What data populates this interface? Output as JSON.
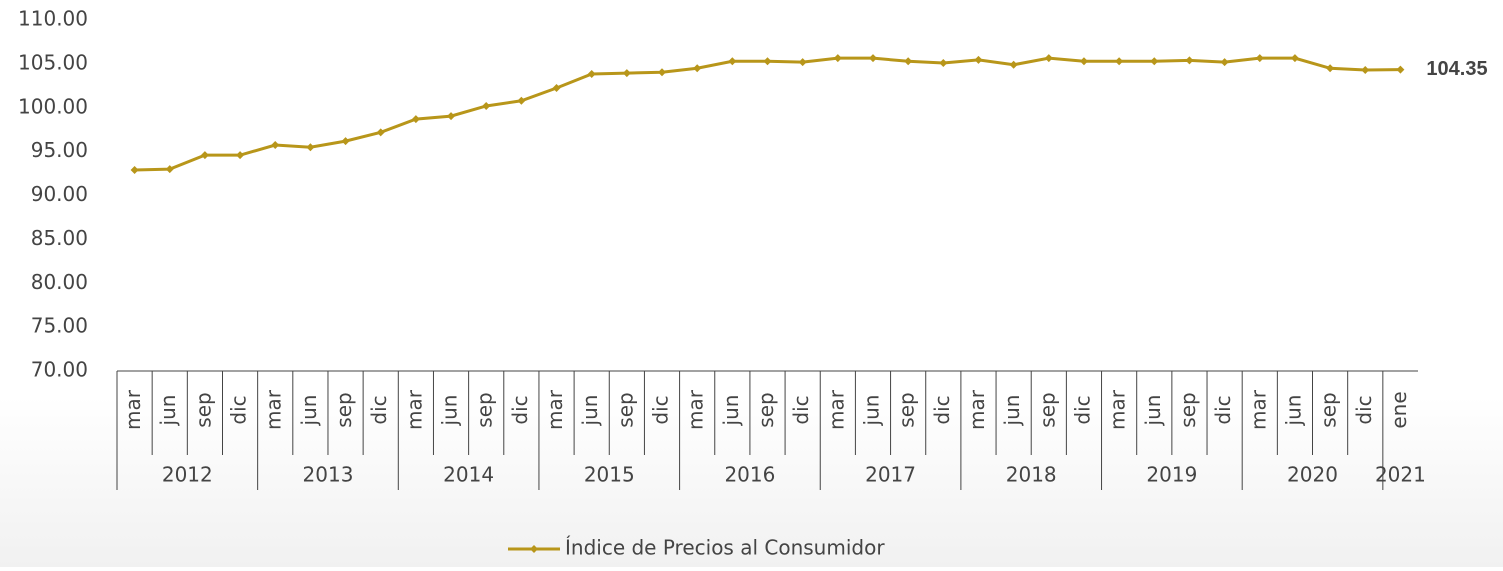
{
  "chart_data": {
    "type": "line",
    "groups": [
      {
        "label": "2012",
        "categories": [
          "mar",
          "jun",
          "sep",
          "dic"
        ]
      },
      {
        "label": "2013",
        "categories": [
          "mar",
          "jun",
          "sep",
          "dic"
        ]
      },
      {
        "label": "2014",
        "categories": [
          "mar",
          "jun",
          "sep",
          "dic"
        ]
      },
      {
        "label": "2015",
        "categories": [
          "mar",
          "jun",
          "sep",
          "dic"
        ]
      },
      {
        "label": "2016",
        "categories": [
          "mar",
          "jun",
          "sep",
          "dic"
        ]
      },
      {
        "label": "2017",
        "categories": [
          "mar",
          "jun",
          "sep",
          "dic"
        ]
      },
      {
        "label": "2018",
        "categories": [
          "mar",
          "jun",
          "sep",
          "dic"
        ]
      },
      {
        "label": "2019",
        "categories": [
          "mar",
          "jun",
          "sep",
          "dic"
        ]
      },
      {
        "label": "2020",
        "categories": [
          "mar",
          "jun",
          "sep",
          "dic"
        ]
      },
      {
        "label": "2021",
        "categories": [
          "ene"
        ]
      }
    ],
    "series": [
      {
        "name": "Índice de Precios al Consumidor",
        "color": "#b8961a",
        "values": [
          92.9,
          93.0,
          94.6,
          94.6,
          95.75,
          95.5,
          96.2,
          97.2,
          98.7,
          99.05,
          100.2,
          100.8,
          102.25,
          103.85,
          103.95,
          104.05,
          104.5,
          105.3,
          105.3,
          105.2,
          105.65,
          105.65,
          105.3,
          105.1,
          105.45,
          104.9,
          105.65,
          105.3,
          105.3,
          105.3,
          105.4,
          105.2,
          105.65,
          105.65,
          104.5,
          104.3,
          104.35
        ]
      }
    ],
    "data_labels": "last",
    "ylim": [
      70,
      110
    ],
    "yticks": [
      {
        "value": 70,
        "label": "70.00"
      },
      {
        "value": 75,
        "label": "75.00"
      },
      {
        "value": 80,
        "label": "80.00"
      },
      {
        "value": 85,
        "label": "85.00"
      },
      {
        "value": 90,
        "label": "90.00"
      },
      {
        "value": 95,
        "label": "95.00"
      },
      {
        "value": 100,
        "label": "100.00"
      },
      {
        "value": 105,
        "label": "105.00"
      },
      {
        "value": 110,
        "label": "110.00"
      }
    ],
    "legend": "bottom"
  }
}
